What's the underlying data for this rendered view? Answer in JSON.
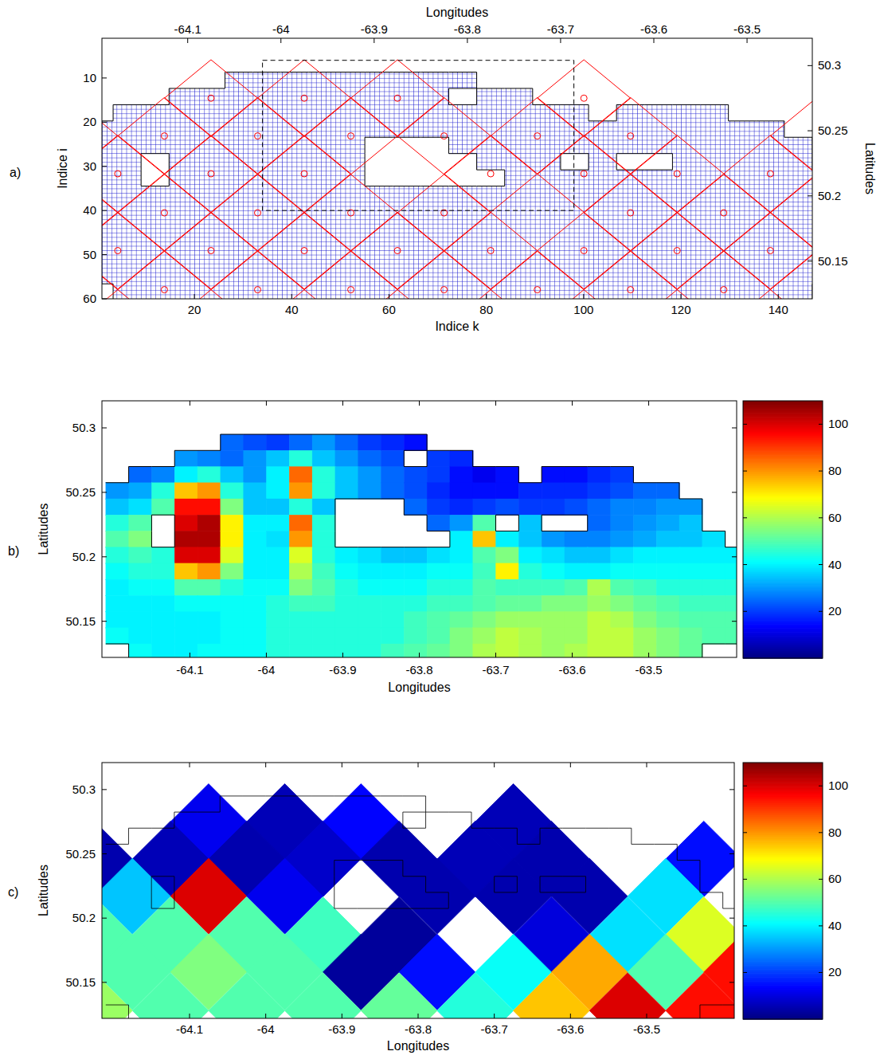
{
  "chart_data": [
    {
      "type": "grid_map",
      "panel_label": "a)",
      "x_label": "Indice k",
      "y_label": "Indice i",
      "x2_label": "Longitudes",
      "y2_label": "Latitudes",
      "xlim": [
        1,
        147
      ],
      "xticks": [
        20,
        40,
        60,
        80,
        100,
        120,
        140
      ],
      "ylim": [
        1,
        60
      ],
      "yticks": [
        10,
        20,
        30,
        40,
        50,
        60
      ],
      "x2lim": [
        -64.192,
        -63.43
      ],
      "x2ticks": [
        -64.1,
        -64,
        -63.9,
        -63.8,
        -63.7,
        -63.6,
        -63.5
      ],
      "y2lim": [
        50.121,
        50.321
      ],
      "y2ticks": [
        50.3,
        50.25,
        50.2,
        50.15
      ],
      "box": {
        "x": [
          34,
          98
        ],
        "y": [
          6,
          40
        ]
      }
    },
    {
      "type": "heatmap",
      "panel_label": "b)",
      "x_label": "Longitudes",
      "y_label": "Latitudes",
      "xlim": [
        -64.215,
        -63.385
      ],
      "xticks": [
        -64.1,
        -64,
        -63.9,
        -63.8,
        -63.7,
        -63.6,
        -63.5
      ],
      "ylim": [
        50.122,
        50.321
      ],
      "yticks": [
        50.15,
        50.2,
        50.25,
        50.3
      ],
      "x": [
        -64.195,
        -64.165,
        -64.135,
        -64.105,
        -64.075,
        -64.045,
        -64.015,
        -63.985,
        -63.955,
        -63.925,
        -63.895,
        -63.865,
        -63.835,
        -63.805,
        -63.775,
        -63.745,
        -63.715,
        -63.685,
        -63.655,
        -63.625,
        -63.595,
        -63.565,
        -63.535,
        -63.505,
        -63.475,
        -63.445,
        -63.415,
        -63.385
      ],
      "y": [
        50.31375,
        50.30125,
        50.28875,
        50.27625,
        50.26375,
        50.25125,
        50.23875,
        50.22625,
        50.21375,
        50.20125,
        50.18875,
        50.17625,
        50.16375,
        50.15125,
        50.13875,
        50.12625
      ],
      "cells": [
        [
          null,
          null,
          null,
          null,
          null,
          null,
          null,
          null,
          null,
          null,
          null,
          null,
          null,
          null,
          null,
          null,
          null,
          null,
          null,
          null,
          null,
          null,
          null,
          null,
          null,
          null,
          null,
          null
        ],
        [
          null,
          null,
          null,
          null,
          null,
          null,
          null,
          null,
          null,
          null,
          null,
          null,
          null,
          null,
          null,
          null,
          null,
          null,
          null,
          null,
          null,
          null,
          null,
          null,
          null,
          null,
          null,
          null
        ],
        [
          null,
          null,
          null,
          null,
          null,
          25,
          22,
          20,
          25,
          30,
          25,
          20,
          18,
          15,
          null,
          null,
          null,
          null,
          null,
          null,
          null,
          null,
          null,
          null,
          null,
          null,
          null,
          null
        ],
        [
          null,
          null,
          null,
          30,
          28,
          25,
          30,
          35,
          45,
          35,
          30,
          25,
          22,
          null,
          20,
          18,
          null,
          null,
          null,
          null,
          null,
          null,
          null,
          null,
          null,
          null,
          null,
          null
        ],
        [
          null,
          25,
          28,
          40,
          45,
          35,
          30,
          40,
          85,
          45,
          35,
          30,
          25,
          22,
          20,
          15,
          12,
          15,
          null,
          15,
          15,
          18,
          20,
          null,
          null,
          null,
          null,
          null
        ],
        [
          30,
          32,
          45,
          75,
          80,
          45,
          35,
          40,
          80,
          45,
          35,
          30,
          25,
          22,
          18,
          15,
          15,
          15,
          18,
          18,
          18,
          20,
          22,
          25,
          25,
          null,
          null,
          null
        ],
        [
          35,
          38,
          50,
          95,
          95,
          55,
          35,
          35,
          45,
          35,
          null,
          null,
          null,
          25,
          20,
          18,
          20,
          22,
          20,
          20,
          22,
          25,
          28,
          28,
          30,
          30,
          null,
          null
        ],
        [
          45,
          50,
          null,
          100,
          105,
          70,
          40,
          40,
          85,
          45,
          null,
          null,
          null,
          null,
          25,
          30,
          50,
          null,
          35,
          null,
          null,
          25,
          28,
          30,
          32,
          35,
          null,
          null
        ],
        [
          50,
          55,
          null,
          105,
          105,
          70,
          40,
          38,
          80,
          45,
          null,
          null,
          null,
          null,
          null,
          40,
          75,
          40,
          35,
          30,
          28,
          28,
          30,
          32,
          35,
          35,
          38,
          null
        ],
        [
          45,
          48,
          45,
          100,
          100,
          65,
          40,
          40,
          65,
          45,
          40,
          38,
          35,
          35,
          38,
          40,
          50,
          55,
          40,
          38,
          35,
          35,
          38,
          40,
          40,
          40,
          40,
          40
        ],
        [
          42,
          45,
          45,
          75,
          80,
          55,
          40,
          40,
          60,
          48,
          42,
          40,
          40,
          40,
          42,
          42,
          48,
          70,
          45,
          42,
          40,
          40,
          42,
          42,
          42,
          42,
          42,
          42
        ],
        [
          40,
          42,
          42,
          50,
          50,
          45,
          42,
          42,
          55,
          50,
          45,
          42,
          42,
          42,
          45,
          45,
          50,
          48,
          48,
          48,
          50,
          60,
          50,
          48,
          45,
          45,
          45,
          45
        ],
        [
          40,
          40,
          40,
          42,
          42,
          42,
          42,
          45,
          48,
          48,
          45,
          45,
          45,
          45,
          48,
          48,
          50,
          52,
          52,
          55,
          55,
          58,
          55,
          52,
          50,
          48,
          48,
          48
        ],
        [
          40,
          40,
          40,
          40,
          40,
          42,
          42,
          45,
          45,
          45,
          45,
          45,
          45,
          48,
          50,
          52,
          55,
          58,
          58,
          58,
          58,
          62,
          60,
          55,
          52,
          50,
          50,
          50
        ],
        [
          42,
          40,
          40,
          40,
          40,
          42,
          42,
          45,
          45,
          45,
          45,
          45,
          45,
          48,
          50,
          55,
          58,
          62,
          60,
          58,
          58,
          62,
          62,
          58,
          55,
          52,
          50,
          50
        ],
        [
          null,
          42,
          40,
          40,
          42,
          42,
          42,
          45,
          45,
          45,
          45,
          45,
          48,
          50,
          52,
          55,
          60,
          62,
          60,
          58,
          60,
          62,
          62,
          58,
          55,
          52,
          null,
          null
        ]
      ],
      "colorbar": {
        "lim": [
          0,
          110
        ],
        "ticks": [
          20,
          40,
          60,
          80,
          100
        ]
      }
    },
    {
      "type": "diamond_map",
      "panel_label": "c)",
      "x_label": "Longitudes",
      "y_label": "Latitudes",
      "xlim": [
        -64.215,
        -63.385
      ],
      "xticks": [
        -64.1,
        -64,
        -63.9,
        -63.8,
        -63.7,
        -63.6,
        -63.5
      ],
      "ylim": [
        50.122,
        50.321
      ],
      "yticks": [
        50.15,
        50.2,
        50.25,
        50.3
      ],
      "cell_size": [
        0.1,
        0.059
      ],
      "cells": {
        "x": [
          -64.075,
          -63.975,
          -63.875,
          -63.675,
          -64.225,
          -64.125,
          -64.025,
          -63.925,
          -63.825,
          -63.725,
          -63.625,
          -63.425,
          -64.175,
          -64.075,
          -63.975,
          -63.775,
          -63.675,
          -63.575,
          -63.475,
          -64.225,
          -64.125,
          -64.025,
          -63.925,
          -63.825,
          -63.625,
          -63.525,
          -63.425,
          -64.175,
          -64.075,
          -63.975,
          -63.875,
          -63.775,
          -63.675,
          -63.575,
          -63.475,
          -63.375,
          -64.225,
          -64.125,
          -64.025,
          -63.925,
          -63.825,
          -63.725,
          -63.625,
          -63.525,
          -63.425
        ],
        "y": [
          50.275,
          50.275,
          50.275,
          50.275,
          50.246,
          50.246,
          50.246,
          50.246,
          50.246,
          50.246,
          50.246,
          50.246,
          50.217,
          50.217,
          50.217,
          50.217,
          50.217,
          50.217,
          50.217,
          50.187,
          50.187,
          50.187,
          50.187,
          50.187,
          50.187,
          50.187,
          50.187,
          50.158,
          50.158,
          50.158,
          50.158,
          50.158,
          50.158,
          50.158,
          50.158,
          50.158,
          50.128,
          50.128,
          50.128,
          50.128,
          50.128,
          50.128,
          50.128,
          50.128,
          50.128
        ],
        "values": [
          12,
          6,
          14,
          6,
          5,
          6,
          5,
          8,
          5,
          6,
          5,
          15,
          35,
          100,
          12,
          5,
          5,
          5,
          38,
          50,
          50,
          50,
          48,
          3,
          10,
          38,
          65,
          50,
          55,
          50,
          3,
          15,
          42,
          78,
          50,
          95,
          58,
          50,
          50,
          50,
          52,
          45,
          75,
          100,
          95
        ]
      },
      "colorbar": {
        "lim": [
          0,
          110
        ],
        "ticks": [
          20,
          40,
          60,
          80,
          100
        ]
      }
    }
  ]
}
